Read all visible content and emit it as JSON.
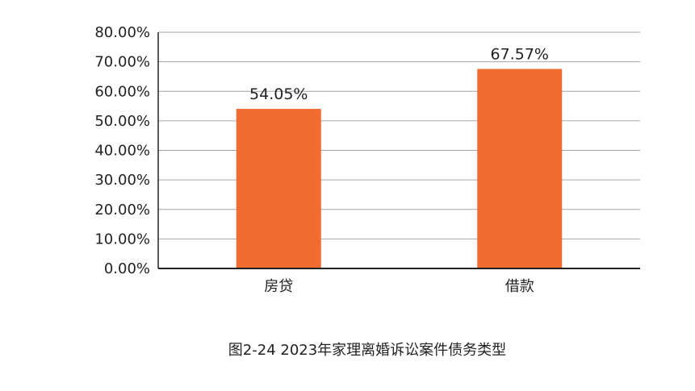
{
  "chart_data": {
    "type": "bar",
    "categories": [
      "房贷",
      "借款"
    ],
    "values": [
      54.05,
      67.57
    ],
    "data_labels": [
      "54.05%",
      "67.57%"
    ],
    "ylim": [
      0,
      80
    ],
    "yticks": [
      0,
      10,
      20,
      30,
      40,
      50,
      60,
      70,
      80
    ],
    "ytick_labels": [
      "0.00%",
      "10.00%",
      "20.00%",
      "30.00%",
      "40.00%",
      "50.00%",
      "60.00%",
      "70.00%",
      "80.00%"
    ],
    "grid": true,
    "legend": "none",
    "bar_color": "#F26B30"
  },
  "caption": "图2-24  2023年家理离婚诉讼案件债务类型"
}
